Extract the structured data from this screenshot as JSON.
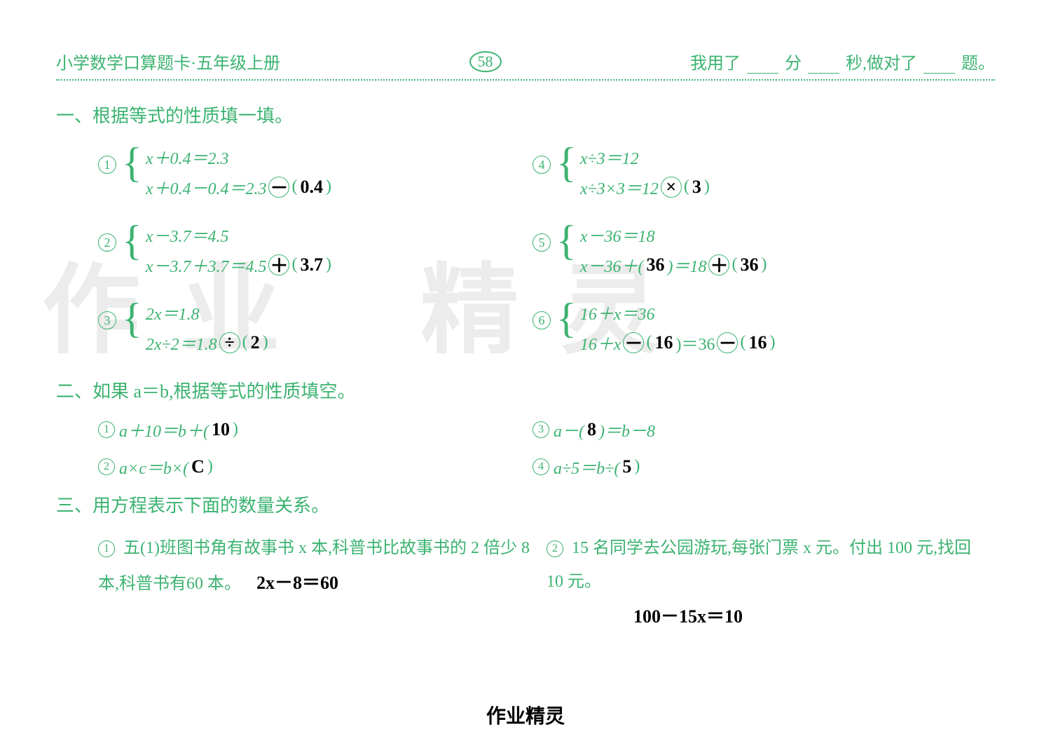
{
  "header": {
    "left": "小学数学口算题卡·五年级上册",
    "pageNum": "58",
    "right_prefix": "我用了",
    "right_min": "分",
    "right_sec": "秒,做对了",
    "right_suffix": "题。"
  },
  "colors": {
    "primary": "#3cb371",
    "handwritten": "#000000",
    "background": "#ffffff",
    "watermark": "rgba(180,180,180,0.25)"
  },
  "section1": {
    "title": "一、根据等式的性质填一填。",
    "problems": [
      {
        "num": "1",
        "line1": "x＋0.4＝2.3",
        "line2_pre": "x＋0.4－0.4＝2.3",
        "op_ans": "－",
        "val_ans": "0.4"
      },
      {
        "num": "2",
        "line1": "x－3.7＝4.5",
        "line2_pre": "x－3.7＋3.7＝4.5",
        "op_ans": "＋",
        "val_ans": "3.7"
      },
      {
        "num": "3",
        "line1": "2x＝1.8",
        "line2_pre": "2x÷2＝1.8",
        "op_ans": "÷",
        "val_ans": "2"
      },
      {
        "num": "4",
        "line1": "x÷3＝12",
        "line2_pre": "x÷3×3＝12",
        "op_ans": "×",
        "val_ans": "3"
      },
      {
        "num": "5",
        "line1": "x－36＝18",
        "line2_pre": "x－36＋( ",
        "mid_ans": "36",
        "line2_mid": " )＝18",
        "op_ans": "＋",
        "val_ans": "36"
      },
      {
        "num": "6",
        "line1": "16＋x＝36",
        "line2_pre": "16＋x",
        "op_ans1": "－",
        "mid_paren": "( ",
        "mid_ans": "16",
        "mid_paren2": " )＝36",
        "op_ans2": "－",
        "val_ans": "16"
      }
    ]
  },
  "section2": {
    "title": "二、如果 a＝b,根据等式的性质填空。",
    "items": [
      {
        "num": "1",
        "text_pre": "a＋10＝b＋( ",
        "ans": "10",
        "text_post": " )"
      },
      {
        "num": "2",
        "text_pre": "a×c＝b×( ",
        "ans": "C",
        "text_post": " )"
      },
      {
        "num": "3",
        "text_pre": "a－( ",
        "ans": "8",
        "text_post": " )＝b－8"
      },
      {
        "num": "4",
        "text_pre": "a÷5＝b÷( ",
        "ans": "5",
        "text_post": " )"
      }
    ]
  },
  "section3": {
    "title": "三、用方程表示下面的数量关系。",
    "problems": [
      {
        "num": "1",
        "text": "五(1)班图书角有故事书 x 本,科普书比故事书的 2 倍少 8 本,科普书有60 本。",
        "ans": "2x－8＝60"
      },
      {
        "num": "2",
        "text": "15 名同学去公园游玩,每张门票 x 元。付出 100 元,找回 10 元。",
        "ans": "100－15x＝10"
      }
    ]
  },
  "footer": "作业精灵",
  "watermark_chars": [
    "作",
    "业",
    "精",
    "灵"
  ]
}
